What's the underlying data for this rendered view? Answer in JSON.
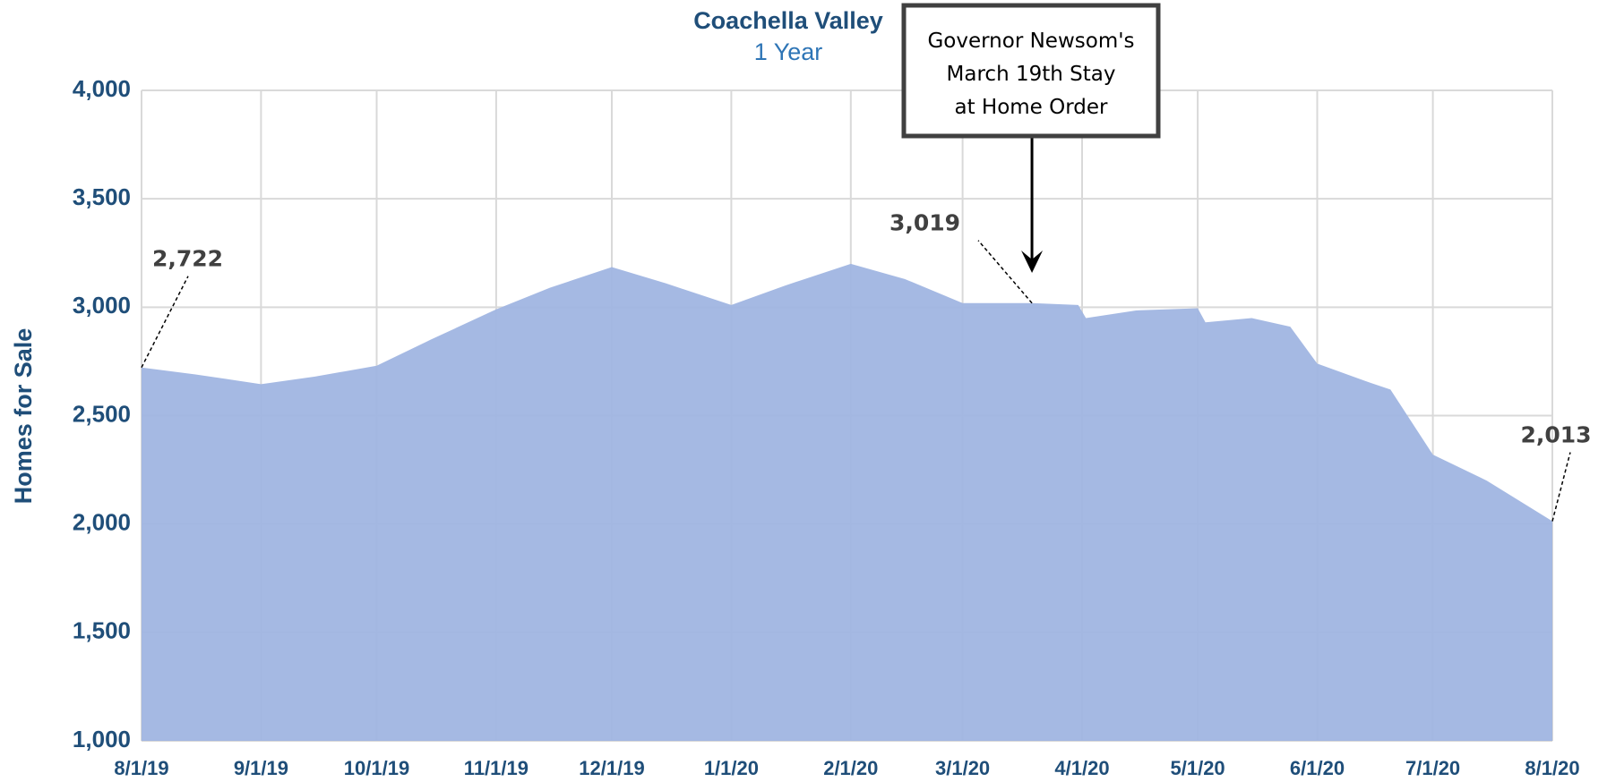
{
  "chart_data": {
    "type": "area",
    "title": "Coachella Valley",
    "subtitle": "1 Year",
    "y_label": "Homes for Sale",
    "annotation": "Governor Newsom's March 19th Stay at Home Order",
    "annotation_x": "2020-03-19",
    "color": "#a0b5e1",
    "grid": true,
    "x": [
      "2019-08-01",
      "2019-08-15",
      "2019-09-01",
      "2019-09-15",
      "2019-10-01",
      "2019-10-15",
      "2019-11-01",
      "2019-11-15",
      "2019-12-01",
      "2019-12-15",
      "2020-01-01",
      "2020-01-15",
      "2020-02-01",
      "2020-02-15",
      "2020-03-01",
      "2020-03-19",
      "2020-03-31",
      "2020-04-02",
      "2020-04-15",
      "2020-05-01",
      "2020-05-03",
      "2020-05-15",
      "2020-05-25",
      "2020-06-01",
      "2020-06-15",
      "2020-06-20",
      "2020-07-01",
      "2020-07-15",
      "2020-08-01"
    ],
    "values": [
      2722,
      2690,
      2645,
      2680,
      2730,
      2850,
      2990,
      3090,
      3185,
      3110,
      3010,
      3100,
      3200,
      3130,
      3019,
      3019,
      3010,
      2950,
      2985,
      2995,
      2930,
      2950,
      2910,
      2740,
      2650,
      2620,
      2320,
      2200,
      2013
    ],
    "value_labels": [
      "2,722",
      null,
      null,
      null,
      null,
      null,
      null,
      null,
      null,
      null,
      null,
      null,
      null,
      null,
      null,
      "3,019",
      null,
      null,
      null,
      null,
      null,
      null,
      null,
      null,
      null,
      null,
      null,
      null,
      "2,013"
    ],
    "xlim": [
      "2019-08-01",
      "2020-08-01"
    ],
    "xticks": [
      {
        "value": "2019-08-01",
        "label": "8/1/19"
      },
      {
        "value": "2019-09-01",
        "label": "9/1/19"
      },
      {
        "value": "2019-10-01",
        "label": "10/1/19"
      },
      {
        "value": "2019-11-01",
        "label": "11/1/19"
      },
      {
        "value": "2019-12-01",
        "label": "12/1/19"
      },
      {
        "value": "2020-01-01",
        "label": "1/1/20"
      },
      {
        "value": "2020-02-01",
        "label": "2/1/20"
      },
      {
        "value": "2020-03-01",
        "label": "3/1/20"
      },
      {
        "value": "2020-04-01",
        "label": "4/1/20"
      },
      {
        "value": "2020-05-01",
        "label": "5/1/20"
      },
      {
        "value": "2020-06-01",
        "label": "6/1/20"
      },
      {
        "value": "2020-07-01",
        "label": "7/1/20"
      },
      {
        "value": "2020-08-01",
        "label": "8/1/20"
      }
    ],
    "ylim": [
      1000,
      4000
    ],
    "yticks": [
      {
        "value": 1000,
        "label": "1,000"
      },
      {
        "value": 1500,
        "label": "1,500"
      },
      {
        "value": 2000,
        "label": "2,000"
      },
      {
        "value": 2500,
        "label": "2,500"
      },
      {
        "value": 3000,
        "label": "3,000"
      },
      {
        "value": 3500,
        "label": "3,500"
      },
      {
        "value": 4000,
        "label": "4,000"
      }
    ]
  }
}
